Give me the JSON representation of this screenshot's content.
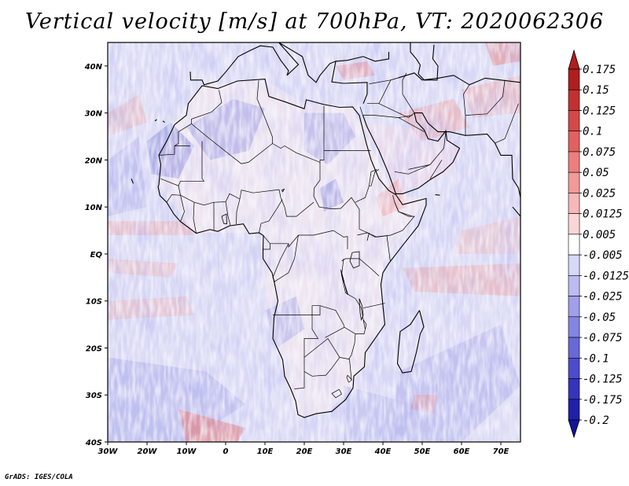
{
  "title": "Vertical velocity [m/s] at 700hPa, VT: 2020062306",
  "credit": "GrADS: IGES/COLA",
  "map": {
    "region": "Africa",
    "lon_range": [
      -30,
      75
    ],
    "lat_range": [
      -40,
      45
    ],
    "x_ticks": [
      "30W",
      "20W",
      "10W",
      "0",
      "10E",
      "20E",
      "30E",
      "40E",
      "50E",
      "60E",
      "70E"
    ],
    "x_tick_lons": [
      -30,
      -20,
      -10,
      0,
      10,
      20,
      30,
      40,
      50,
      60,
      70
    ],
    "y_ticks": [
      "40N",
      "30N",
      "20N",
      "10N",
      "EQ",
      "10S",
      "20S",
      "30S",
      "40S"
    ],
    "y_tick_lats": [
      40,
      30,
      20,
      10,
      0,
      -10,
      -20,
      -30,
      -40
    ]
  },
  "colorbar": {
    "labels": [
      "0.175",
      "0.15",
      "0.125",
      "0.1",
      "0.075",
      "0.05",
      "0.025",
      "0.0125",
      "0.005",
      "-0.005",
      "-0.0125",
      "-0.025",
      "-0.05",
      "-0.075",
      "-0.1",
      "-0.125",
      "-0.175",
      "-0.2"
    ],
    "colors": [
      "#b01e1e",
      "#c33030",
      "#d44848",
      "#e26060",
      "#ec7e7e",
      "#f29a9a",
      "#f7b8b8",
      "#fbd6d6",
      "#ffffff",
      "#d8d8f8",
      "#bcbcf2",
      "#a0a0ea",
      "#8484e2",
      "#6868d8",
      "#4c4ccc",
      "#3434bc",
      "#2020a8"
    ]
  },
  "colors": {
    "ocean_base": "#dcdcf5",
    "land_base": "#efe3ec",
    "coast": "#000000"
  }
}
